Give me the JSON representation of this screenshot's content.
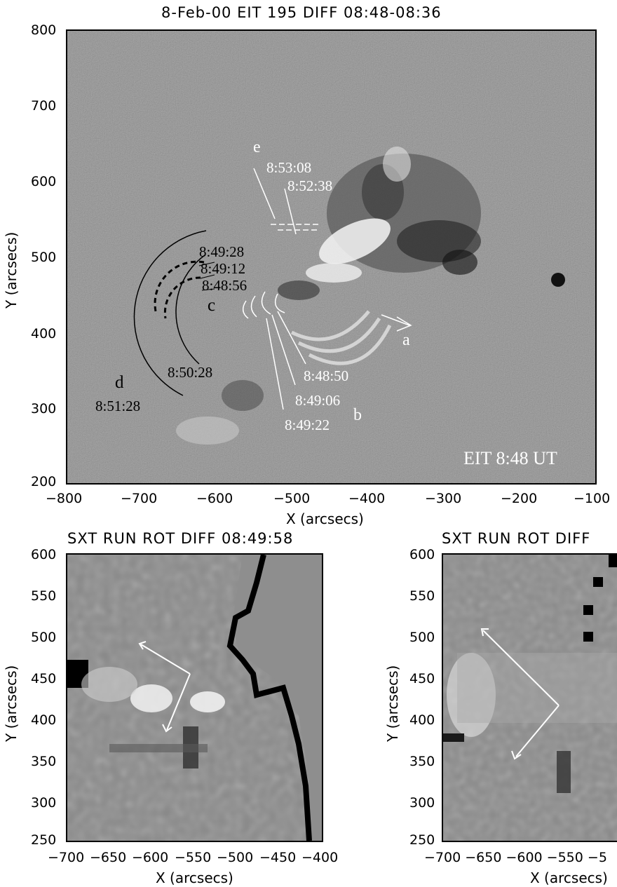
{
  "top_panel": {
    "title": "8-Feb-00 EIT 195 DIFF 08:48-08:36",
    "ylabel": "Y (arcsecs)",
    "xlabel": "X (arcsecs)",
    "y_ticks": [
      "800",
      "700",
      "600",
      "500",
      "400",
      "300",
      "200"
    ],
    "x_ticks": [
      "−800",
      "−700",
      "−600",
      "−500",
      "−400",
      "−300",
      "−200",
      "−100"
    ],
    "instrument_label": "EIT 8:48 UT",
    "annotations": {
      "label_a": "a",
      "label_b": "b",
      "label_c": "c",
      "label_d": "d",
      "label_e": "e",
      "t_853_08": "8:53:08",
      "t_852_38": "8:52:38",
      "t_849_28": "8:49:28",
      "t_849_12": "8:49:12",
      "t_848_56": "8:48:56",
      "t_850_28": "8:50:28",
      "t_851_28": "8:51:28",
      "t_848_50": "8:48:50",
      "t_849_06": "8:49:06",
      "t_849_22": "8:49:22"
    }
  },
  "bottom_left_panel": {
    "title": "SXT RUN ROT DIFF 08:49:58",
    "ylabel": "Y (arcsecs)",
    "xlabel": "X (arcsecs)",
    "y_ticks": [
      "600",
      "550",
      "500",
      "450",
      "400",
      "350",
      "300",
      "250"
    ],
    "x_ticks": [
      "−700",
      "−650",
      "−600",
      "−550",
      "−500",
      "−450",
      "−400"
    ]
  },
  "bottom_right_panel": {
    "title": "SXT RUN ROT DIFF",
    "ylabel": "Y (arcsecs)",
    "xlabel": "X (arcsecs)",
    "y_ticks": [
      "600",
      "550",
      "500",
      "450",
      "400",
      "350",
      "300",
      "250"
    ],
    "x_tick_text": "−700 −650 −600 −550 −5"
  },
  "colors": {
    "background_gray": "#8c8c8c",
    "bright": "#ffffff",
    "dark": "#000000"
  }
}
